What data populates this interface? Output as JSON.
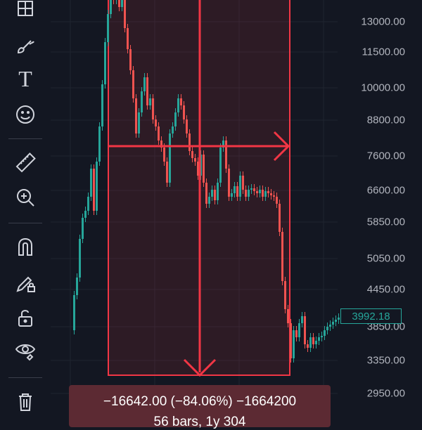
{
  "toolbar": {
    "tools": [
      {
        "name": "crosshair-frame-icon"
      },
      {
        "name": "brush-icon"
      },
      {
        "name": "text-icon",
        "glyph": "T"
      },
      {
        "name": "emoji-icon"
      },
      {
        "name": "ruler-icon"
      },
      {
        "name": "zoom-in-icon"
      },
      {
        "name": "magnet-icon"
      },
      {
        "name": "pencil-lock-icon"
      },
      {
        "name": "unlock-icon"
      },
      {
        "name": "eye-icon"
      },
      {
        "name": "trash-icon"
      }
    ]
  },
  "price_axis": {
    "labels": [
      "13000.00",
      "11500.00",
      "10000.00",
      "8800.00",
      "7600.00",
      "6600.00",
      "5850.00",
      "5050.00",
      "4450.00",
      "3850.00",
      "3350.00",
      "2950.00"
    ],
    "last_price": "3992.18"
  },
  "measure": {
    "line1": "−16642.00 (−84.06%) −1664200",
    "line2": "56 bars, 1y 304",
    "fill_color": "#f23645",
    "box_color": "#5c2a33"
  },
  "colors": {
    "up": "#26a69a",
    "down": "#ef5350",
    "background": "#131722",
    "measure_line": "#f23645"
  }
}
